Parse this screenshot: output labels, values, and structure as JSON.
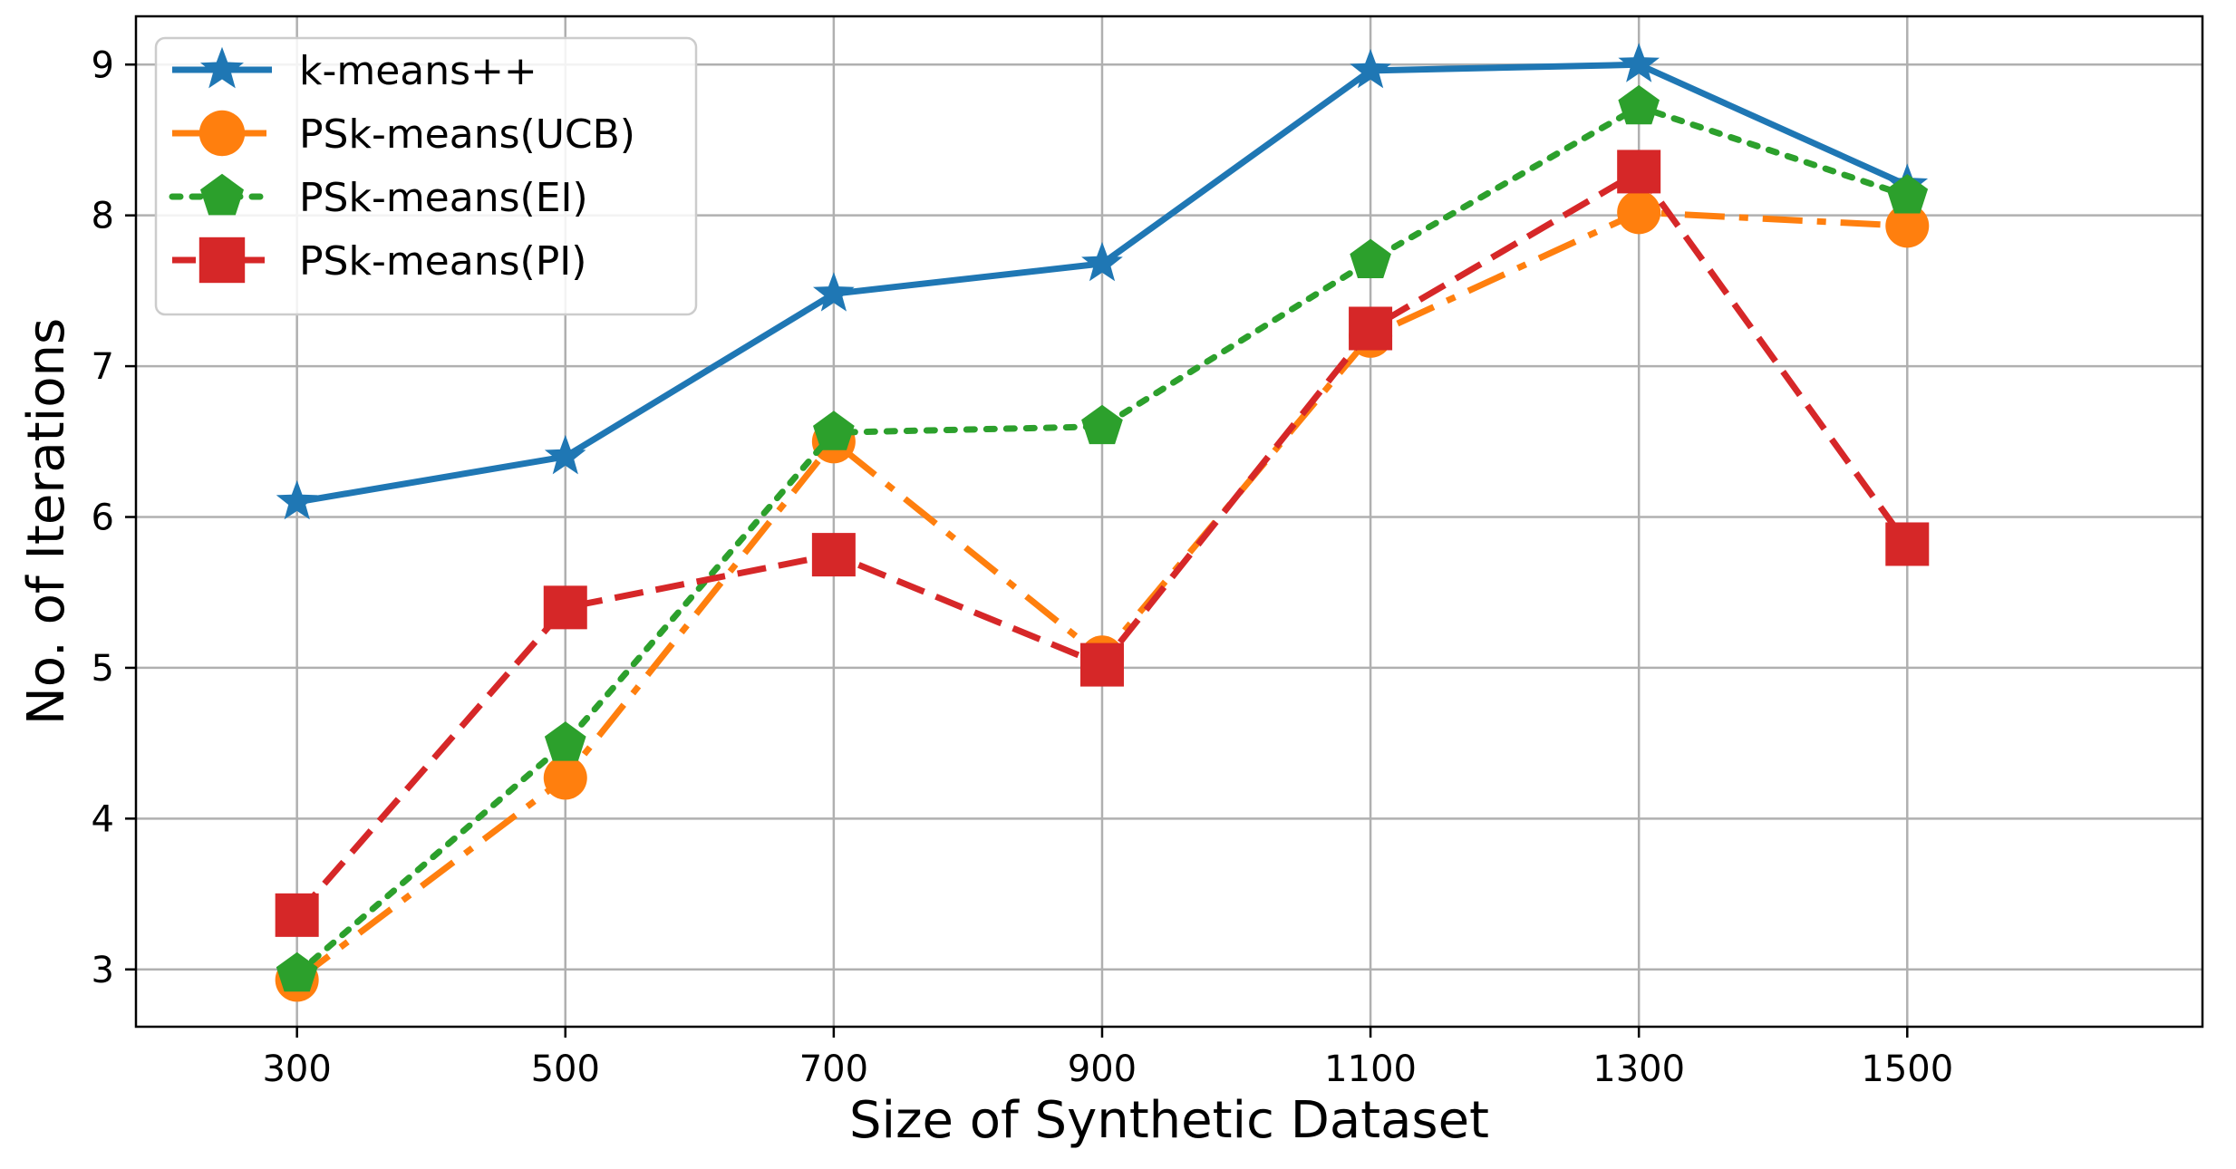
{
  "chart_data": {
    "type": "line",
    "title": "",
    "xlabel": "Size of Synthetic Dataset",
    "ylabel": "No. of Iterations",
    "x": [
      300,
      500,
      700,
      900,
      1100,
      1300,
      1500
    ],
    "xticks": [
      "300",
      "500",
      "700",
      "900",
      "1100",
      "1300",
      "1500"
    ],
    "yticks": [
      "3",
      "4",
      "5",
      "6",
      "7",
      "8",
      "9"
    ],
    "xlim": [
      180,
      1720
    ],
    "ylim": [
      2.62,
      9.32
    ],
    "grid": true,
    "legend_position": "top-left",
    "series": [
      {
        "name": "k-means++",
        "color": "#1f77b4",
        "marker": "star",
        "linestyle": "solid",
        "values": [
          6.1,
          6.4,
          7.48,
          7.68,
          8.96,
          9.0,
          8.2
        ]
      },
      {
        "name": "PSk-means(UCB)",
        "color": "#ff7f0e",
        "marker": "circle",
        "linestyle": "dashdot",
        "values": [
          2.93,
          4.27,
          6.5,
          5.07,
          7.2,
          8.02,
          7.93
        ]
      },
      {
        "name": "PSk-means(EI)",
        "color": "#2ca02c",
        "marker": "pentagon",
        "linestyle": "dotted",
        "values": [
          2.97,
          4.5,
          6.56,
          6.6,
          7.7,
          8.72,
          8.13
        ]
      },
      {
        "name": "PSk-means(PI)",
        "color": "#d62728",
        "marker": "square",
        "linestyle": "dashed",
        "values": [
          3.36,
          5.4,
          5.75,
          5.02,
          7.25,
          8.29,
          5.82
        ]
      }
    ]
  }
}
